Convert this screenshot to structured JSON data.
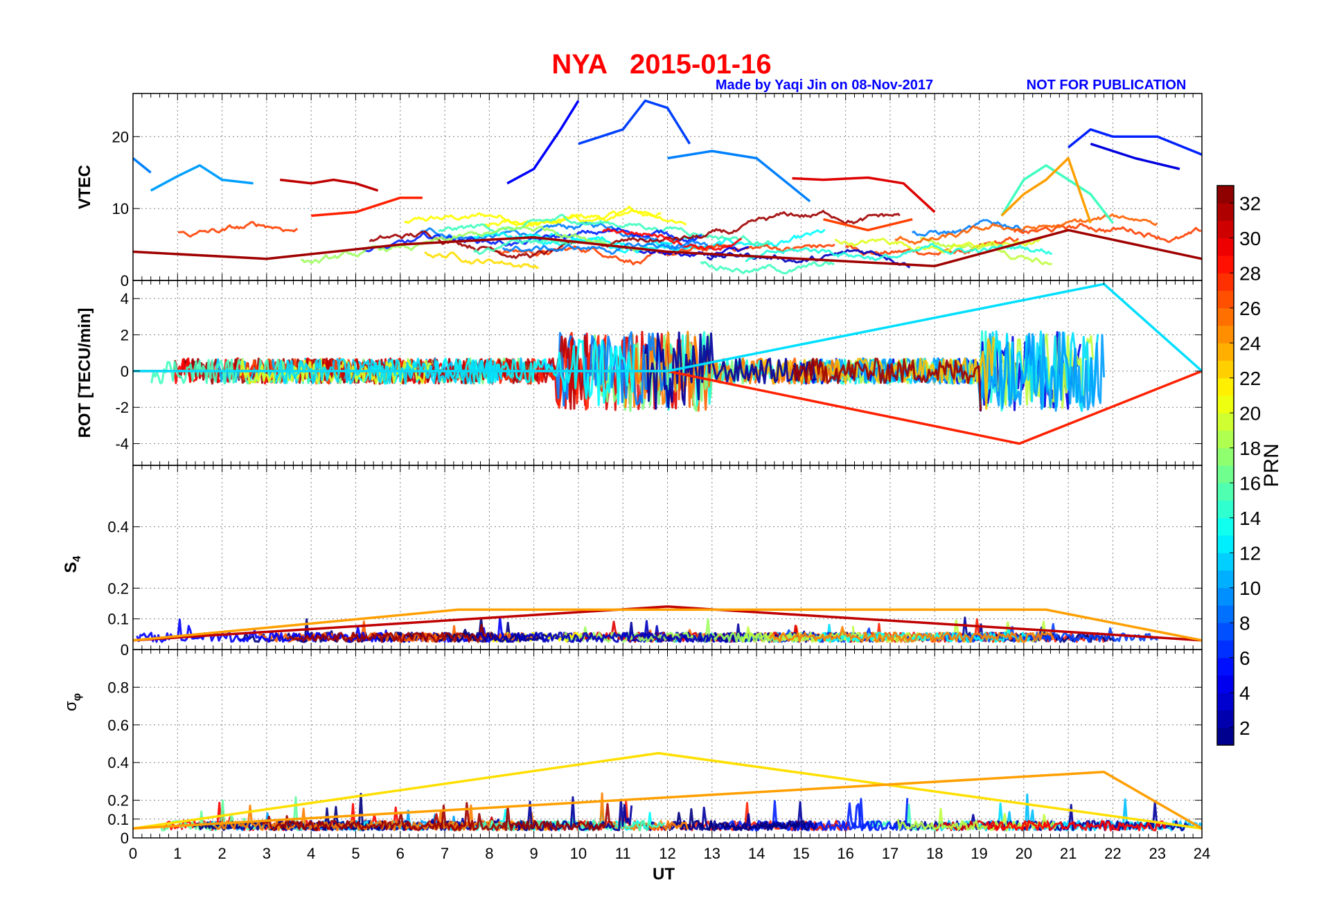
{
  "title": "NYA   2015-01-16",
  "credit": "Made by Yaqi Jin on 08-Nov-2017",
  "notice": "NOT FOR PUBLICATION",
  "colors": {
    "title": "#ff0000",
    "credit": "#0000ff",
    "grid": "#7f7f7f"
  },
  "chart_data": [
    {
      "type": "line",
      "panel": "VTEC",
      "ylabel": "VTEC",
      "xlim": [
        0,
        24
      ],
      "ylim": [
        0,
        26
      ],
      "yticks": [
        0,
        10,
        20
      ],
      "xticks": [
        0,
        1,
        2,
        3,
        4,
        5,
        6,
        7,
        8,
        9,
        10,
        11,
        12,
        13,
        14,
        15,
        16,
        17,
        18,
        19,
        20,
        21,
        22,
        23,
        24
      ],
      "series": [
        {
          "prn": 5,
          "x": [
            8.4,
            9.0,
            9.6,
            10.0
          ],
          "y": [
            13.5,
            15.5,
            21,
            25
          ]
        },
        {
          "prn": 7,
          "x": [
            10.0,
            10.5,
            11.0,
            11.5,
            12.0,
            12.5
          ],
          "y": [
            19,
            20,
            21,
            25,
            24,
            19
          ]
        },
        {
          "prn": 9,
          "x": [
            0.0,
            0.4
          ],
          "y": [
            17,
            15
          ]
        },
        {
          "prn": 10,
          "x": [
            0.4,
            1.0,
            1.5,
            2.0,
            2.7
          ],
          "y": [
            12.5,
            14.5,
            16,
            14,
            13.5
          ]
        },
        {
          "prn": 31,
          "x": [
            3.3,
            4.0,
            4.5,
            5.0,
            5.5
          ],
          "y": [
            14,
            13.5,
            14,
            13.5,
            12.5
          ]
        },
        {
          "prn": 28,
          "x": [
            4.0,
            5.0,
            6.0,
            6.5
          ],
          "y": [
            9,
            9.5,
            11.5,
            11.5
          ]
        },
        {
          "prn": 9,
          "x": [
            12.0,
            13.0,
            14.0,
            15.2
          ],
          "y": [
            17,
            18,
            17,
            11
          ]
        },
        {
          "prn": 30,
          "x": [
            14.8,
            15.5,
            16.5,
            17.3,
            18.0
          ],
          "y": [
            14.2,
            14.0,
            14.3,
            13.5,
            9.5
          ]
        },
        {
          "prn": 27,
          "x": [
            15.5,
            16.5,
            17.5
          ],
          "y": [
            8.5,
            7,
            8.5
          ]
        },
        {
          "prn": 6,
          "x": [
            21.0,
            21.5,
            22.0,
            23.0,
            24.0
          ],
          "y": [
            18.5,
            21,
            20,
            20,
            17.5
          ]
        },
        {
          "prn": 4,
          "x": [
            21.5,
            22.5,
            23.5
          ],
          "y": [
            19,
            17,
            15.5
          ]
        },
        {
          "prn": 15,
          "x": [
            19.5,
            20.0,
            20.5,
            21.5,
            22.0
          ],
          "y": [
            9,
            14,
            16,
            12,
            8
          ]
        },
        {
          "prn": 24,
          "x": [
            19.5,
            20.0,
            20.5,
            21.0,
            21.5
          ],
          "y": [
            9,
            12,
            14,
            17,
            8
          ]
        },
        {
          "prn": 32,
          "x": [
            0.0,
            3.0,
            6.0,
            9.0,
            12.0,
            15.0,
            18.0,
            21.0,
            24.0
          ],
          "y": [
            4,
            3,
            5,
            6,
            4,
            3,
            2,
            7,
            3
          ]
        }
      ]
    },
    {
      "type": "line",
      "panel": "ROT",
      "ylabel": "ROT [TECU/min]",
      "xlim": [
        0,
        24
      ],
      "ylim": [
        -5.2,
        5
      ],
      "yticks": [
        -4,
        -2,
        0,
        2,
        4
      ],
      "series": [
        {
          "prn": 28,
          "x": [
            0,
            6,
            12,
            19.9,
            24
          ],
          "y": [
            0,
            0,
            0,
            -4,
            0
          ]
        },
        {
          "prn": 12,
          "x": [
            0,
            6,
            12,
            21.8,
            24
          ],
          "y": [
            0,
            0,
            0,
            4.8,
            0
          ]
        }
      ]
    },
    {
      "type": "line",
      "panel": "S4",
      "ylabel": "S4",
      "xlim": [
        0,
        24
      ],
      "ylim": [
        0,
        0.6
      ],
      "yticks": [
        0,
        0.1,
        0.2,
        0.4
      ],
      "series": [
        {
          "prn": 31,
          "x": [
            0,
            12.0,
            24
          ],
          "y": [
            0.03,
            0.14,
            0.03
          ]
        },
        {
          "prn": 24,
          "x": [
            0,
            7.3,
            20.5,
            24
          ],
          "y": [
            0.03,
            0.13,
            0.13,
            0.03
          ]
        }
      ]
    },
    {
      "type": "line",
      "panel": "sigma-phi",
      "ylabel": "σφ",
      "xlim": [
        0,
        24
      ],
      "ylim": [
        0,
        1
      ],
      "yticks": [
        0,
        0.1,
        0.2,
        0.4,
        0.6,
        0.8
      ],
      "xlabel": "UT",
      "series": [
        {
          "prn": 22,
          "x": [
            0,
            11.8,
            24
          ],
          "y": [
            0.05,
            0.45,
            0.05
          ]
        },
        {
          "prn": 24,
          "x": [
            0,
            21.8,
            24
          ],
          "y": [
            0.05,
            0.35,
            0.05
          ]
        }
      ]
    }
  ],
  "colorbar": {
    "label": "PRN",
    "min": 1,
    "max": 33,
    "ticks": [
      2,
      4,
      6,
      8,
      10,
      12,
      14,
      16,
      18,
      20,
      22,
      24,
      26,
      28,
      30,
      32
    ],
    "colormap": "jet"
  }
}
